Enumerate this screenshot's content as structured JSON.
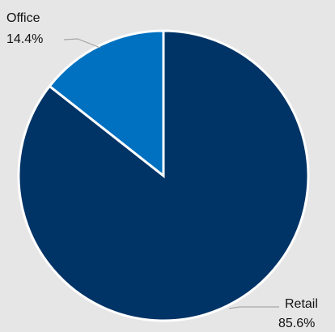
{
  "chart_data": {
    "type": "pie",
    "start_angle_deg": 0,
    "direction": "clockwise",
    "slices": [
      {
        "label": "Retail",
        "value": 85.6,
        "value_label": "85.6%",
        "color": "#003366"
      },
      {
        "label": "Office",
        "value": 14.4,
        "value_label": "14.4%",
        "color": "#0070c0"
      }
    ],
    "slice_border_color": "#ffffff",
    "background": "#e6e6e6",
    "legend": "none",
    "labels_outside_with_leader_lines": true
  }
}
